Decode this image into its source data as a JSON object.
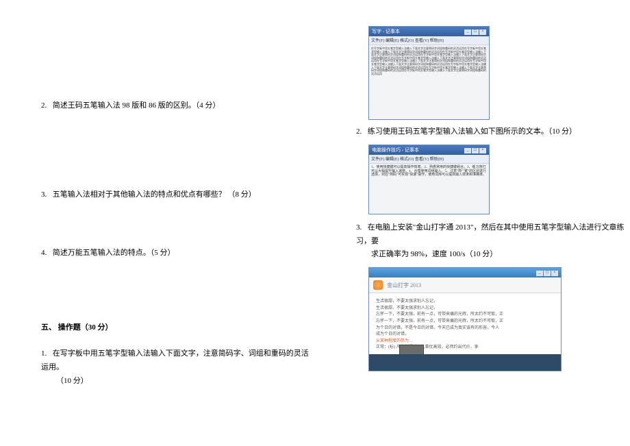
{
  "left": {
    "q2": "简述王码五笔输入法 98 版和 86 版的区别。（4 分）",
    "q3": "五笔输入法相对于其他输入法的特点和优点有哪些？ （8 分）",
    "q4": "简述万能五笔输入法的特点。（5 分）",
    "section": "五、 操作题（30 分）",
    "op1a": "在写字板中用五笔字型输入法输入下面文字，注意简码字、词组和重码的灵活运用。",
    "op1b": "（10 分）"
  },
  "right": {
    "q2": "练习使用王码五笔字型输入法输入如下图所示的文本。（10 分）",
    "q3a": "在电脑上安装\"金山打字通 2013\"，然后在其中使用五笔字型输入法进行文章练习，要",
    "q3b": "求正确率为 98%，速度 100/s（10 分）"
  },
  "fig1": {
    "title": "写字 - 记事本",
    "menu": "文件(F)  编辑(E)  格式(O)  查看(V)  帮助(H)",
    "body": "在写字板中用五笔字型输入法输入下面文字注意简码字词组和重码的灵活运用在写字板中用五笔字型输入法输入下面文字注意简码字词组和重码的灵活运用在写字板中用五笔字型输入法输入下面文字注意简码字词组和重码的灵活运用在写字板中用五笔字型输入法输入下面文字注意简码字词组和重码的灵活运用在写字板中用五笔字型输入法输入下面文字注意简码字词组和重码的灵活运用在写字板中用五笔字型输入法输入下面文字注意简码字词组和重码的灵活运用在写字板中用五笔字型输入法输入下面文字注意简码字词组和重码的灵活运用在写字板中用五笔字型输入法输入下面文字注意简码字词组和重码的灵活运用在写字板中用五笔字型输入法输入下面文字注意简码字词组和重码的灵活运用在写字板中用五笔字型输入法输入下面文字注意简码字词组和重码的灵活运用"
  },
  "fig2": {
    "title": "电脑操作技巧 - 记事本",
    "menu": "文件(F)  编辑(E)  格式(O)  查看(V)  帮助(H)",
    "body": "1、使用快捷键可以提高操作效率。2、熟悉常用的快捷键组合。3、练习盲打可以大幅提升输入速度。4、合理使用词组输入。5、注意\"简\"\"繁\"的区别进行选择，对应\"简码\"可实现\"快速\"操作，使用词库可以提高输入效率和准确率。"
  },
  "fig3": {
    "app": "金山打字 2013",
    "line1": "生活很甜，不要太强求别人忘记，",
    "line2": "生活很甜，不要太强求别人忘记，",
    "line3": "忘怀一下，不要太强，前有一点，可带来痛的光辉，所太约不可取，正",
    "line4": "忘怀一下，不要太强，前有一点，可带来痛的光辉，所太约不可取，正",
    "line5": "为个日的对错，不是今日的对错，今天已成为真实该有的形容，今人",
    "line6": "成为个日的对错，",
    "hl": "从某种程度的热为…",
    "foot": "正常：(标) 凡事有规则，凡事优高效，必然约出代价，享"
  },
  "colors": {
    "titlebar_grad_top": "#4a7ac0",
    "titlebar_grad_bot": "#355f9e",
    "fig3_titlebar_top": "#5aa4e0",
    "fig3_titlebar_bot": "#3a7dbb",
    "fig3_foot": "#2d4a66",
    "orange_icon_inner": "#ffb05a",
    "orange_icon_outer": "#f07b1a"
  }
}
